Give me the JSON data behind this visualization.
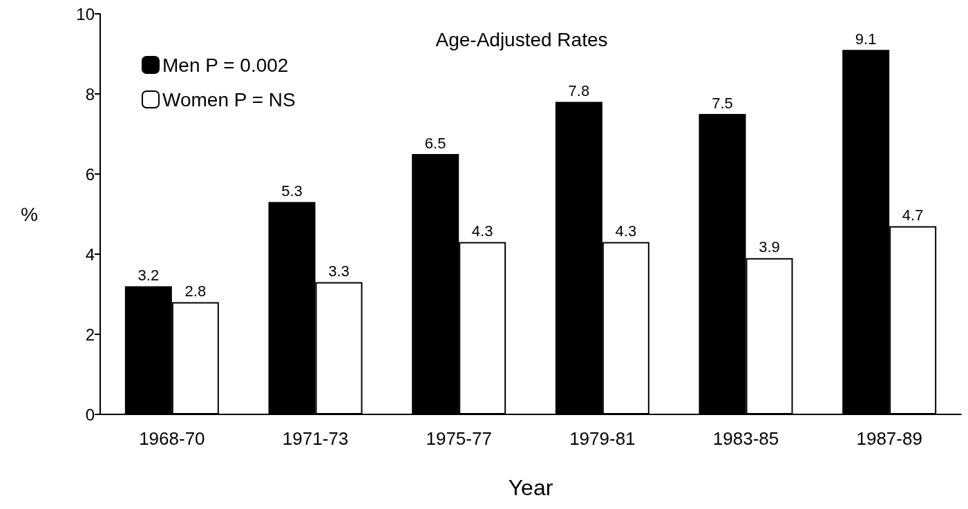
{
  "chart_data": {
    "type": "bar",
    "title": "Age-Adjusted Rates",
    "xlabel": "Year",
    "ylabel": "%",
    "categories": [
      "1968-70",
      "1971-73",
      "1975-77",
      "1979-81",
      "1983-85",
      "1987-89"
    ],
    "series": [
      {
        "name": "Men P = 0.002",
        "color": "#000000",
        "values": [
          3.2,
          5.3,
          6.5,
          7.8,
          7.5,
          9.1
        ]
      },
      {
        "name": "Women P = NS",
        "color": "#ffffff",
        "values": [
          2.8,
          3.3,
          4.3,
          4.3,
          3.9,
          4.7
        ]
      }
    ],
    "ylim": [
      0,
      10
    ],
    "yticks": [
      0,
      2,
      4,
      6,
      8,
      10
    ],
    "grid": false,
    "legend": "top left",
    "data_labels": true
  }
}
